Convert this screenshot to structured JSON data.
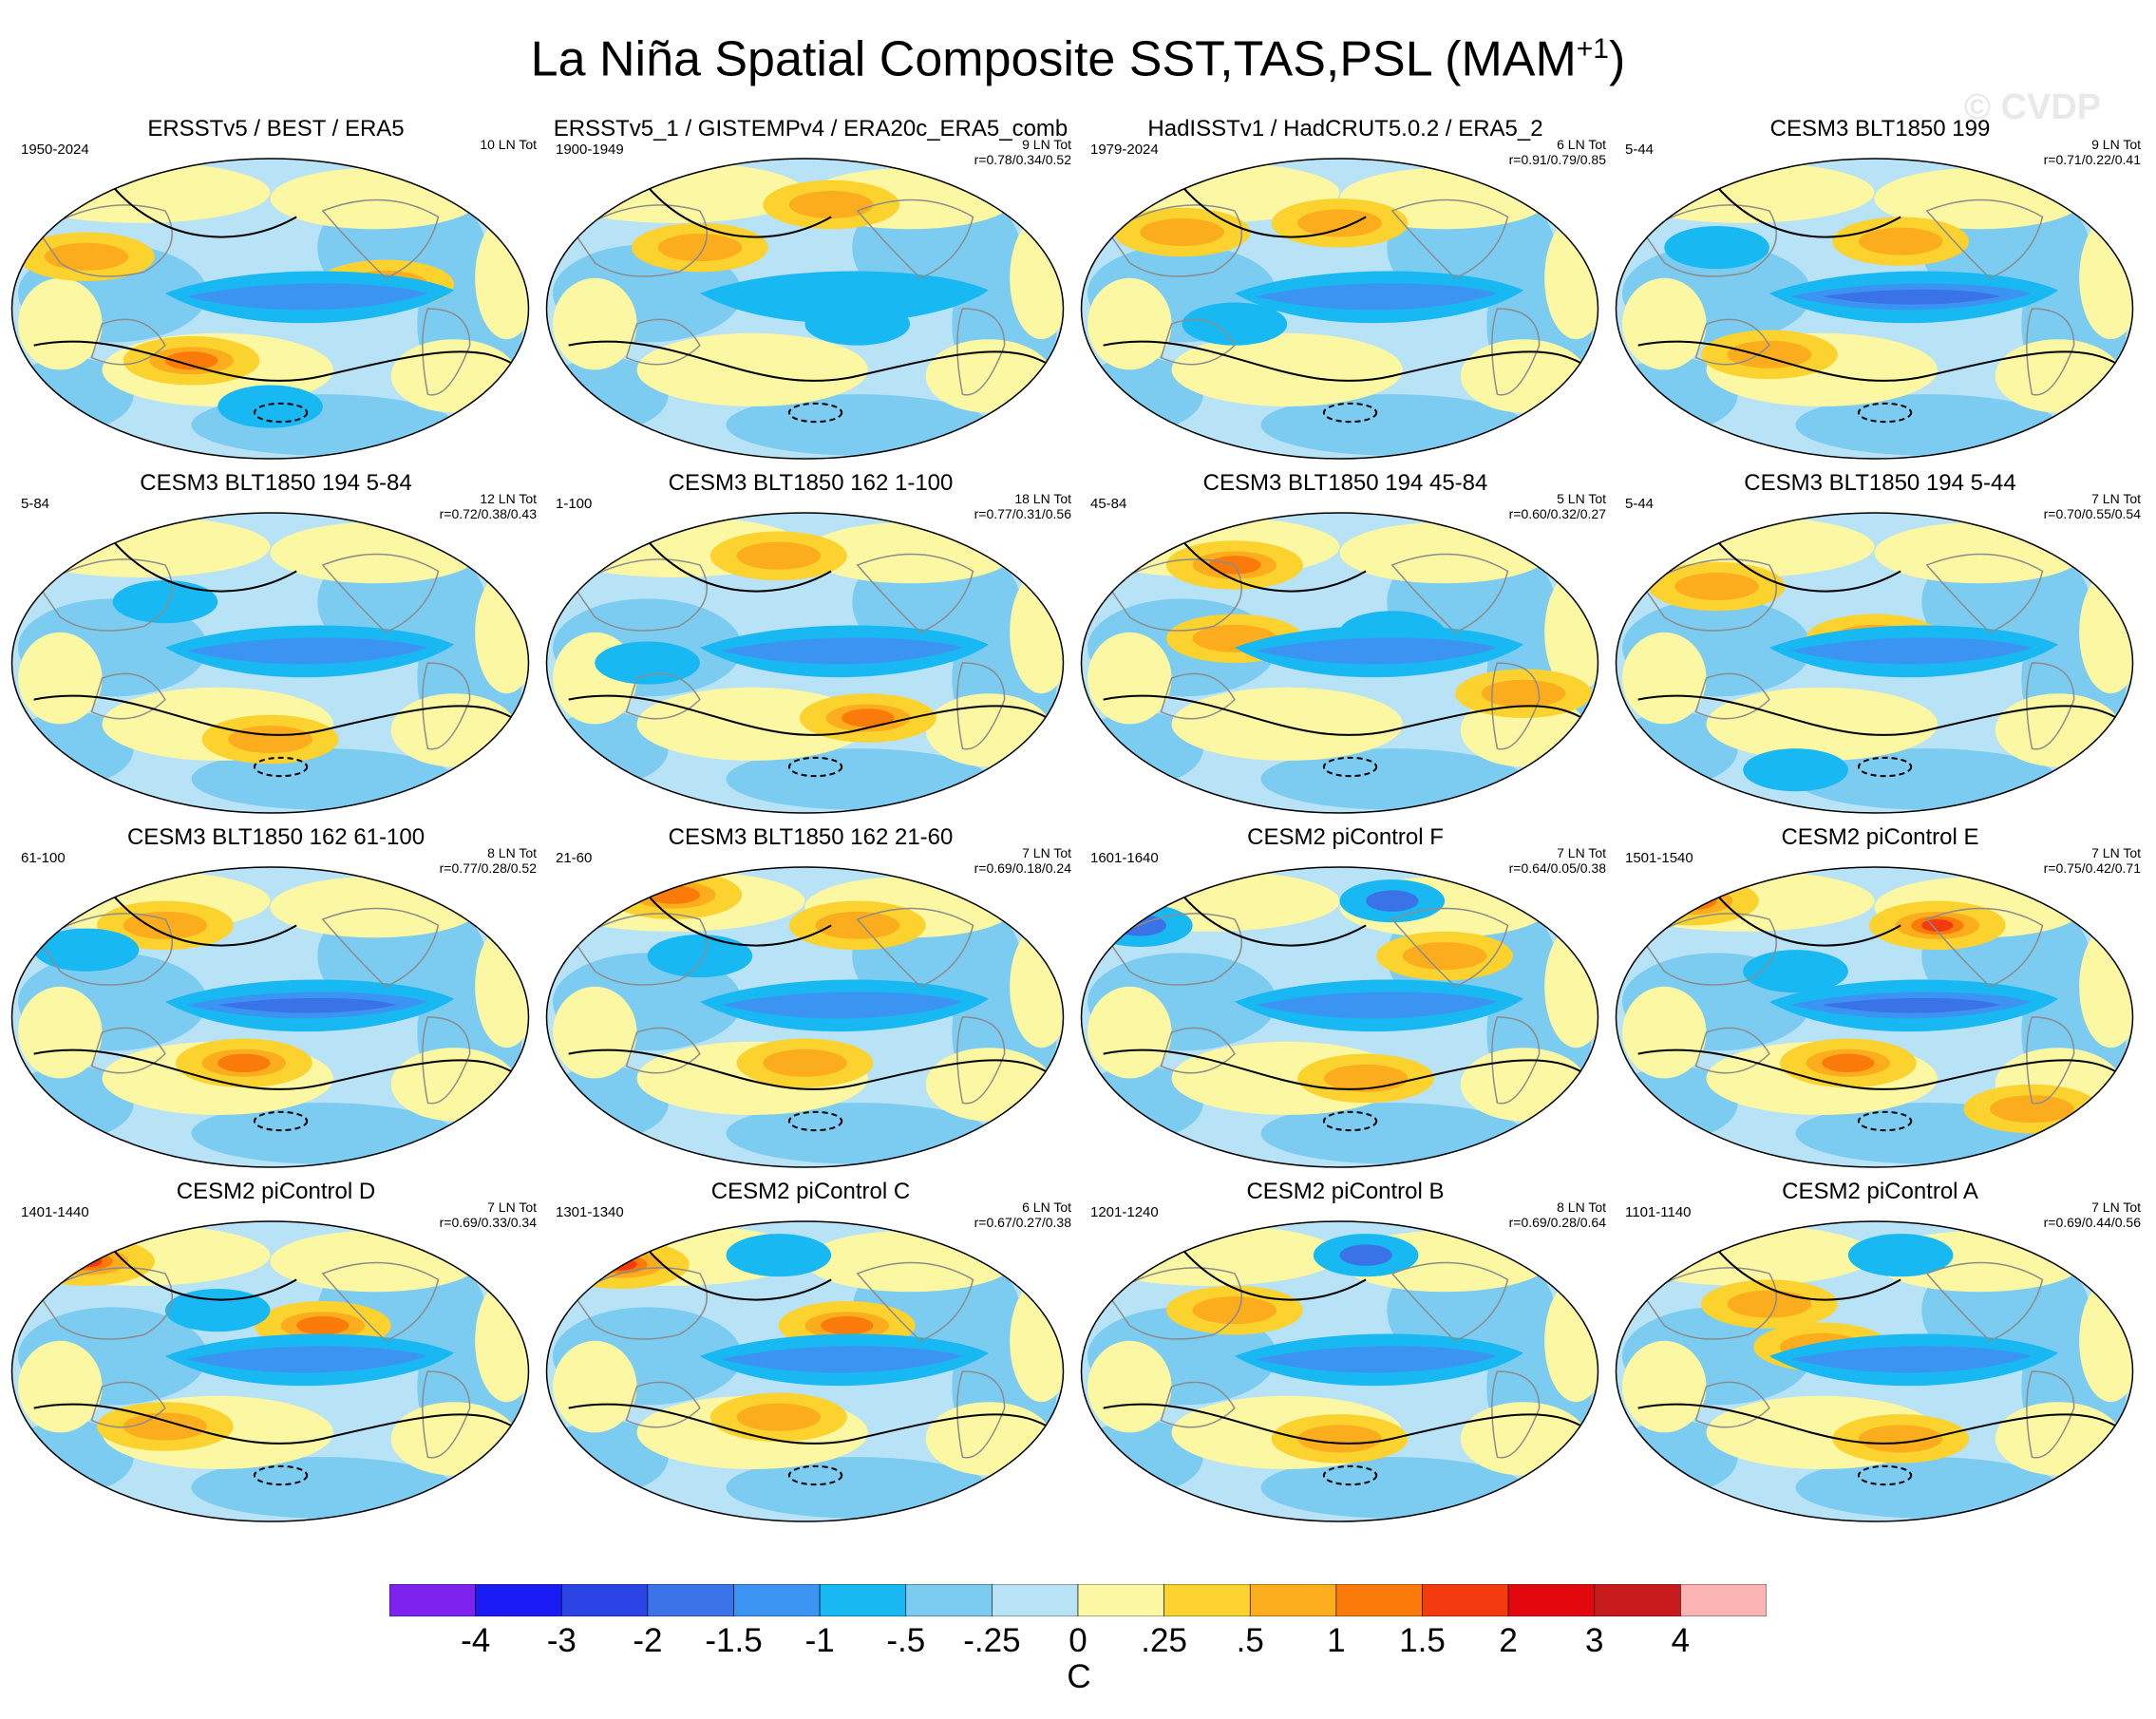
{
  "title": {
    "text": "La Niña Spatial Composite SST,TAS,PSL (MAM",
    "superscript": "+1",
    "close": ")"
  },
  "watermark": "© CVDP",
  "panels": [
    {
      "title": "ERSSTv5 / BEST / ERA5",
      "period": "1950-2024",
      "count": "10 LN Tot",
      "stats": "",
      "nino": -1.3,
      "warm": [
        [
          0.35,
          0.67,
          2
        ],
        [
          0.15,
          0.33,
          1
        ],
        [
          0.72,
          0.42,
          1
        ]
      ],
      "cold": [
        [
          0.5,
          0.82,
          1
        ]
      ]
    },
    {
      "title": "ERSSTv5_1 / GISTEMPv4 / ERA20c_ERA5_comb",
      "period": "1900-1949",
      "count": "9 LN Tot",
      "stats": "r=0.78/0.34/0.52",
      "nino": -0.9,
      "warm": [
        [
          0.3,
          0.3,
          1
        ],
        [
          0.55,
          0.16,
          1
        ]
      ],
      "cold": [
        [
          0.6,
          0.55,
          1
        ]
      ]
    },
    {
      "title": "HadISSTv1 / HadCRUT5.0.2 / ERA5_2",
      "period": "1979-2024",
      "count": "6 LN Tot",
      "stats": "r=0.91/0.79/0.85",
      "nino": -1.0,
      "warm": [
        [
          0.2,
          0.25,
          1
        ],
        [
          0.5,
          0.22,
          1
        ]
      ],
      "cold": [
        [
          0.3,
          0.55,
          1
        ]
      ]
    },
    {
      "title": "CESM3 BLT1850 199",
      "period": "5-44",
      "count": "9 LN Tot",
      "stats": "r=0.71/0.22/0.41",
      "nino": -1.6,
      "warm": [
        [
          0.3,
          0.65,
          1
        ],
        [
          0.55,
          0.28,
          1
        ]
      ],
      "cold": [
        [
          0.2,
          0.3,
          1
        ]
      ]
    },
    {
      "title": "CESM3 BLT1850 194 5-84",
      "period": "5-84",
      "count": "12 LN Tot",
      "stats": "r=0.72/0.38/0.43",
      "nino": -1.2,
      "warm": [
        [
          0.5,
          0.75,
          1
        ]
      ],
      "cold": [
        [
          0.3,
          0.3,
          1
        ]
      ]
    },
    {
      "title": "CESM3 BLT1850 162 1-100",
      "period": "1-100",
      "count": "18 LN Tot",
      "stats": "r=0.77/0.31/0.56",
      "nino": -1.1,
      "warm": [
        [
          0.62,
          0.68,
          2
        ],
        [
          0.45,
          0.15,
          1
        ]
      ],
      "cold": [
        [
          0.2,
          0.5,
          1
        ]
      ]
    },
    {
      "title": "CESM3 BLT1850 194 45-84",
      "period": "45-84",
      "count": "5 LN Tot",
      "stats": "r=0.60/0.32/0.27",
      "nino": -1.0,
      "warm": [
        [
          0.3,
          0.18,
          2
        ],
        [
          0.85,
          0.6,
          1
        ],
        [
          0.3,
          0.42,
          1
        ]
      ],
      "cold": [
        [
          0.6,
          0.4,
          1
        ]
      ]
    },
    {
      "title": "CESM3 BLT1850 194 5-44",
      "period": "5-44",
      "count": "7 LN Tot",
      "stats": "r=0.70/0.55/0.54",
      "nino": -1.2,
      "warm": [
        [
          0.2,
          0.25,
          1
        ],
        [
          0.5,
          0.42,
          1
        ]
      ],
      "cold": [
        [
          0.35,
          0.85,
          1
        ]
      ]
    },
    {
      "title": "CESM3 BLT1850 162 61-100",
      "period": "61-100",
      "count": "8 LN Tot",
      "stats": "r=0.77/0.28/0.52",
      "nino": -1.8,
      "warm": [
        [
          0.45,
          0.65,
          2
        ],
        [
          0.3,
          0.2,
          1
        ]
      ],
      "cold": [
        [
          0.15,
          0.28,
          1
        ]
      ]
    },
    {
      "title": "CESM3 BLT1850 162 21-60",
      "period": "21-60",
      "count": "7 LN Tot",
      "stats": "r=0.69/0.18/0.24",
      "nino": -1.2,
      "warm": [
        [
          0.25,
          0.1,
          2
        ],
        [
          0.5,
          0.65,
          1
        ],
        [
          0.6,
          0.2,
          1
        ]
      ],
      "cold": [
        [
          0.3,
          0.3,
          1
        ]
      ]
    },
    {
      "title": "CESM2 piControl F",
      "period": "1601-1640",
      "count": "7 LN Tot",
      "stats": "r=0.64/0.05/0.38",
      "nino": -1.1,
      "warm": [
        [
          0.55,
          0.7,
          1
        ],
        [
          0.7,
          0.3,
          1
        ]
      ],
      "cold": [
        [
          0.12,
          0.2,
          2
        ],
        [
          0.6,
          0.12,
          2
        ]
      ]
    },
    {
      "title": "CESM2 piControl E",
      "period": "1501-1540",
      "count": "7 LN Tot",
      "stats": "r=0.75/0.42/0.71",
      "nino": -1.5,
      "warm": [
        [
          0.15,
          0.12,
          3
        ],
        [
          0.62,
          0.2,
          3
        ],
        [
          0.45,
          0.65,
          2
        ],
        [
          0.8,
          0.8,
          1
        ]
      ],
      "cold": [
        [
          0.35,
          0.35,
          1
        ]
      ]
    },
    {
      "title": "CESM2 piControl D",
      "period": "1401-1440",
      "count": "7 LN Tot",
      "stats": "r=0.69/0.33/0.34",
      "nino": -1.1,
      "warm": [
        [
          0.15,
          0.14,
          3
        ],
        [
          0.6,
          0.35,
          2
        ],
        [
          0.3,
          0.68,
          1
        ]
      ],
      "cold": [
        [
          0.4,
          0.3,
          1
        ]
      ]
    },
    {
      "title": "CESM2 piControl C",
      "period": "1301-1340",
      "count": "6 LN Tot",
      "stats": "r=0.67/0.27/0.38",
      "nino": -1.0,
      "warm": [
        [
          0.15,
          0.15,
          3
        ],
        [
          0.58,
          0.35,
          2
        ],
        [
          0.45,
          0.65,
          1
        ]
      ],
      "cold": [
        [
          0.45,
          0.12,
          1
        ]
      ]
    },
    {
      "title": "CESM2 piControl B",
      "period": "1201-1240",
      "count": "8 LN Tot",
      "stats": "r=0.69/0.28/0.64",
      "nino": -1.0,
      "warm": [
        [
          0.5,
          0.72,
          1
        ],
        [
          0.3,
          0.3,
          1
        ]
      ],
      "cold": [
        [
          0.55,
          0.12,
          2
        ]
      ]
    },
    {
      "title": "CESM2 piControl A",
      "period": "1101-1140",
      "count": "7 LN Tot",
      "stats": "r=0.69/0.44/0.56",
      "nino": -1.0,
      "warm": [
        [
          0.4,
          0.42,
          1
        ],
        [
          0.55,
          0.72,
          1
        ],
        [
          0.3,
          0.28,
          1
        ]
      ],
      "cold": [
        [
          0.55,
          0.12,
          1
        ]
      ]
    }
  ],
  "colorbar": {
    "units": "C",
    "labels": [
      "-4",
      "-3",
      "-2",
      "-1.5",
      "-1",
      "-.5",
      "-.25",
      "0",
      ".25",
      ".5",
      "1",
      "1.5",
      "2",
      "3",
      "4"
    ],
    "colors": [
      "#7e22f0",
      "#1a1af5",
      "#2a44e6",
      "#3a72e8",
      "#3c94f2",
      "#18b8f2",
      "#7ccbf0",
      "#b8e2f5",
      "#fbf7a2",
      "#fbd22e",
      "#fbad1d",
      "#fa7a0a",
      "#f43b0f",
      "#e3080e",
      "#c81a1a",
      "#fbb3b3"
    ]
  }
}
